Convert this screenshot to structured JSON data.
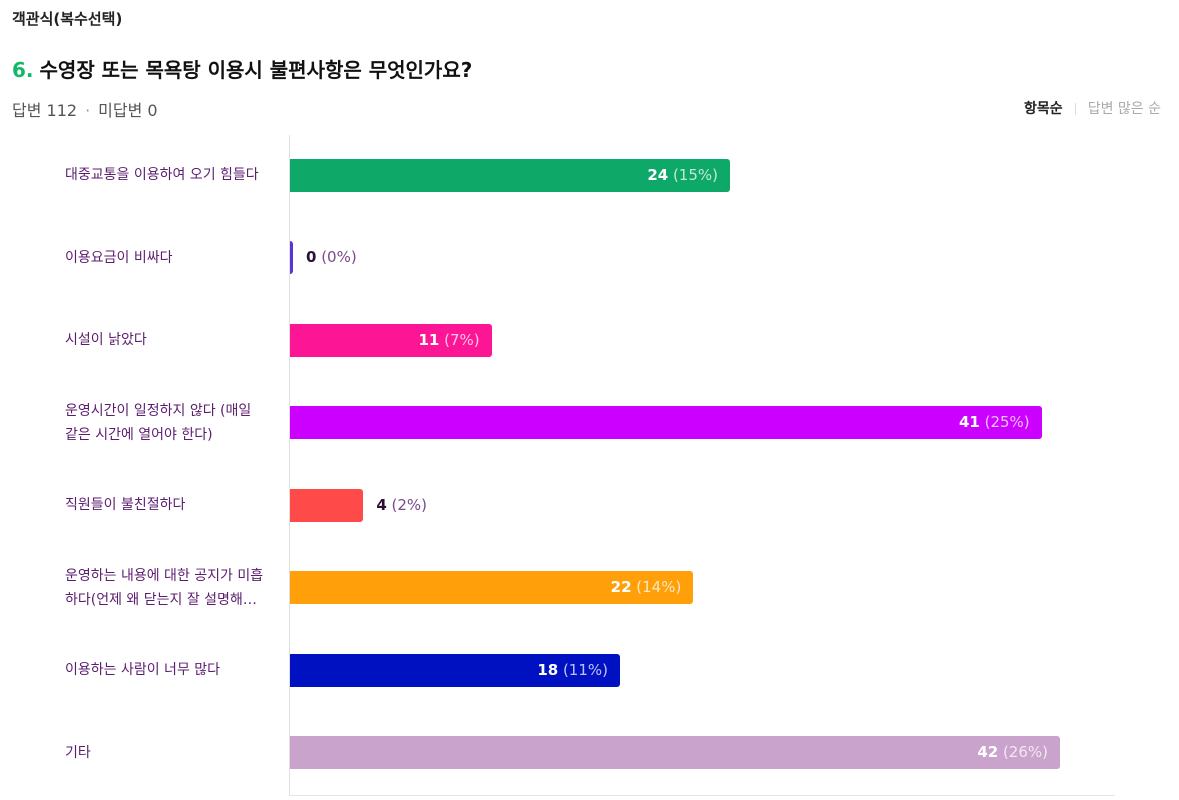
{
  "question": {
    "type_label": "객관식(복수선택)",
    "number": "6.",
    "title": "수영장 또는 목욕탕 이용시 불편사항은 무엇인가요?",
    "answered": "답변 112",
    "separator": "·",
    "unanswered": "미답변 0"
  },
  "sort": {
    "by_item": "항목순",
    "by_count": "답변 많은 순",
    "active": "by_item"
  },
  "chart_data": {
    "type": "bar",
    "orientation": "horizontal",
    "title": "",
    "xlabel": "",
    "ylabel": "",
    "categories": [
      [
        "대중교통을 이용하여 오기 힘들다"
      ],
      [
        "이용요금이 비싸다"
      ],
      [
        "시설이 낡았다"
      ],
      [
        "운영시간이 일정하지 않다 (매일",
        "같은 시간에 열어야 한다)"
      ],
      [
        "직원들이 불친절하다"
      ],
      [
        "운영하는 내용에 대한 공지가 미흡",
        "하다(언제 왜 닫는지 잘 설명해…"
      ],
      [
        "이용하는 사람이 너무 많다"
      ],
      [
        "기타"
      ]
    ],
    "values": [
      24,
      0,
      11,
      41,
      4,
      22,
      18,
      42
    ],
    "value_labels": [
      "24",
      "0",
      "11",
      "41",
      "4",
      "22",
      "18",
      "42"
    ],
    "percent_labels": [
      "(15%)",
      "(0%)",
      "(7%)",
      "(25%)",
      "(2%)",
      "(14%)",
      "(11%)",
      "(26%)"
    ],
    "colors": [
      "#0ea868",
      "#5b34d6",
      "#fc1594",
      "#cc00ff",
      "#ff4a4a",
      "#ffa00a",
      "#0011c2",
      "#caa3cc"
    ],
    "xlim": [
      0,
      45
    ],
    "grid": false,
    "legend": "none"
  }
}
